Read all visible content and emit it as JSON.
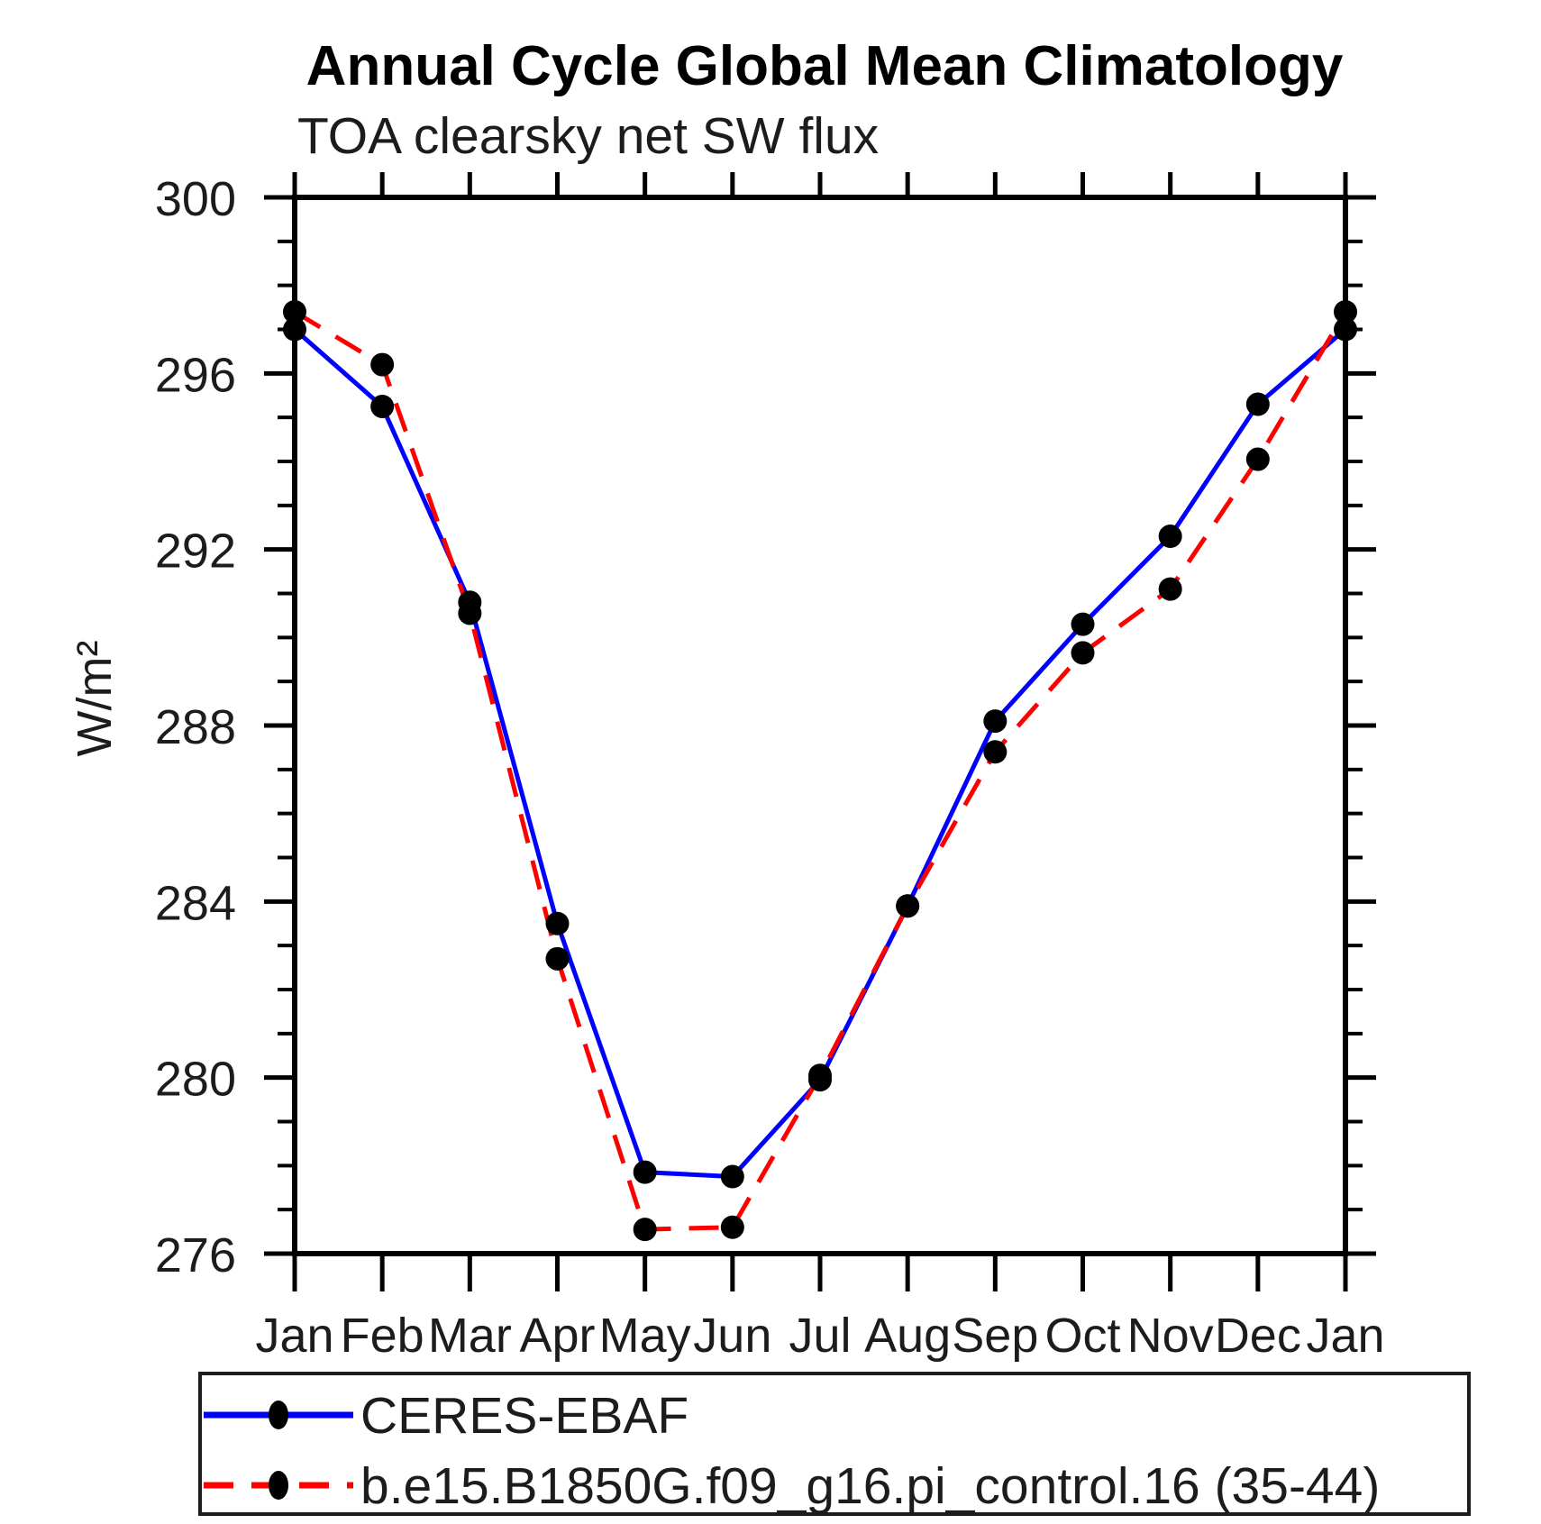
{
  "page": {
    "background": "#ffffff"
  },
  "chart_data": {
    "type": "line",
    "title": "Annual Cycle Global Mean Climatology",
    "subtitle": "TOA clearsky net SW flux",
    "xlabel": "",
    "ylabel": "W/m²",
    "ylim": [
      276,
      300
    ],
    "ytick_major_step": 4,
    "ytick_minor_step": 1,
    "ytick_major_labels": [
      "276",
      "280",
      "284",
      "288",
      "292",
      "296",
      "300"
    ],
    "categories": [
      "Jan",
      "Feb",
      "Mar",
      "Apr",
      "May",
      "Jun",
      "Jul",
      "Aug",
      "Sep",
      "Oct",
      "Nov",
      "Dec",
      "Jan"
    ],
    "grid": false,
    "axis_color": "#000000",
    "marker_color": "#000000",
    "legend_position": "bottom-left",
    "series": [
      {
        "name": "CERES-EBAF",
        "color": "#0000ff",
        "style": "solid",
        "values": [
          297.0,
          295.25,
          290.8,
          283.5,
          277.85,
          277.75,
          279.95,
          283.9,
          288.1,
          290.3,
          292.3,
          295.3,
          297.0
        ]
      },
      {
        "name": "b.e15.B1850G.f09_g16.pi_control.16 (35-44)",
        "color": "#ff0000",
        "style": "dashed",
        "values": [
          297.4,
          296.2,
          290.55,
          282.7,
          276.55,
          276.6,
          280.05,
          283.9,
          287.4,
          289.65,
          291.1,
          294.05,
          297.4
        ]
      }
    ]
  }
}
